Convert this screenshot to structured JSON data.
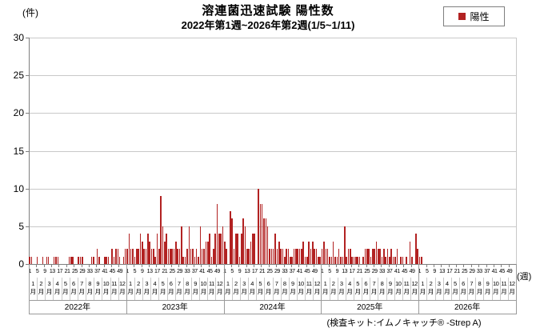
{
  "header": {
    "title": "溶連菌迅速試験 陽性数",
    "subtitle": "2022年第1週~2026年第2週(1/5~1/11)"
  },
  "legend": {
    "label": "陽性",
    "swatch_color": "#b22222"
  },
  "axes": {
    "y_unit_label": "(件)",
    "x_unit_label": "(週)"
  },
  "footnote": "(検査キット:イムノキャッチ® -Strep A)",
  "chart_data": {
    "type": "bar",
    "title": "溶連菌迅速試験 陽性数",
    "subtitle": "2022年第1週~2026年第2週(1/5~1/11)",
    "ylabel": "(件)",
    "xlabel": "(週)",
    "ylim": [
      0,
      30
    ],
    "yticks": [
      0,
      5,
      10,
      15,
      20,
      25,
      30
    ],
    "grid": true,
    "legend_position": "top-right",
    "x_structure": {
      "years": [
        "2022年",
        "2023年",
        "2024年",
        "2025年",
        "2026年"
      ],
      "weeks_per_year": 52,
      "week_tick_labels": [
        1,
        5,
        9,
        13,
        17,
        21,
        25,
        29,
        33,
        37,
        41,
        45,
        49
      ],
      "month_labels": [
        "1月",
        "2月",
        "3月",
        "4月",
        "5月",
        "6月",
        "7月",
        "8月",
        "9月",
        "10月",
        "11月",
        "12月"
      ]
    },
    "series": [
      {
        "name": "陽性",
        "color": "#b22222",
        "data": [
          {
            "year": "2022",
            "weekly": [
              1,
              1,
              0,
              0,
              1,
              0,
              0,
              1,
              0,
              1,
              1,
              0,
              0,
              1,
              1,
              1,
              0,
              0,
              0,
              0,
              0,
              1,
              1,
              1,
              0,
              0,
              1,
              1,
              1,
              0,
              0,
              0,
              0,
              1,
              1,
              0,
              2,
              1,
              0,
              0,
              1,
              1,
              1,
              0,
              2,
              1,
              2,
              2,
              1,
              0,
              1,
              2
            ]
          },
          {
            "year": "2023",
            "weekly": [
              2,
              4,
              2,
              2,
              1,
              2,
              2,
              4,
              3,
              2,
              2,
              4,
              3,
              2,
              2,
              1,
              4,
              2,
              9,
              5,
              3,
              4,
              2,
              2,
              2,
              2,
              3,
              2,
              2,
              5,
              1,
              1,
              2,
              5,
              2,
              2,
              1,
              2,
              1,
              5,
              2,
              2,
              3,
              3,
              4,
              1,
              2,
              4,
              8,
              4,
              4,
              5
            ]
          },
          {
            "year": "2024",
            "weekly": [
              3,
              2,
              0,
              7,
              6,
              2,
              4,
              4,
              1,
              4,
              6,
              5,
              2,
              2,
              3,
              4,
              4,
              0,
              10,
              8,
              8,
              6,
              6,
              5,
              2,
              2,
              2,
              4,
              2,
              3,
              2,
              2,
              1,
              2,
              2,
              1,
              1,
              2,
              2,
              2,
              2,
              2,
              3,
              1,
              1,
              3,
              2,
              3,
              2,
              2,
              1,
              1
            ]
          },
          {
            "year": "2025",
            "weekly": [
              2,
              3,
              2,
              2,
              1,
              1,
              3,
              1,
              1,
              2,
              1,
              1,
              5,
              1,
              2,
              2,
              1,
              1,
              1,
              1,
              1,
              0,
              1,
              2,
              2,
              2,
              1,
              2,
              2,
              3,
              2,
              2,
              1,
              2,
              1,
              2,
              1,
              2,
              1,
              1,
              2,
              0,
              1,
              1,
              0,
              1,
              0,
              3,
              1,
              0,
              4,
              2
            ]
          },
          {
            "year": "2026",
            "weekly": [
              1,
              1
            ]
          }
        ]
      }
    ]
  }
}
